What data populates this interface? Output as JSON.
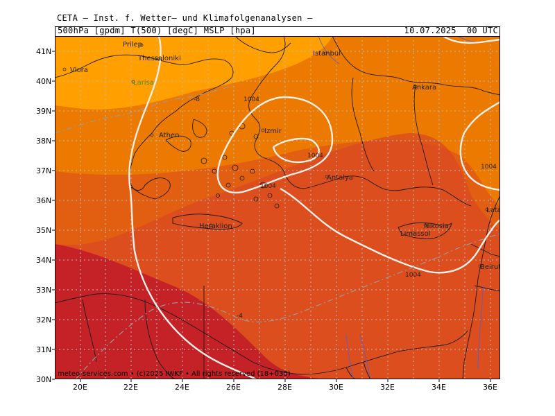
{
  "header": {
    "title": "CETA — Inst. f. Wetter— und Klimafolgenanalysen —",
    "variables": "500hPa [gpdm] T(500) [degC] MSLP [hpa]",
    "valid_time": "10.07.2025  00 UTC"
  },
  "map": {
    "lat_labels": [
      "41N",
      "40N",
      "39N",
      "38N",
      "37N",
      "36N",
      "35N",
      "34N",
      "33N",
      "32N",
      "31N",
      "30N"
    ],
    "lon_labels": [
      "20E",
      "22E",
      "24E",
      "26E",
      "28E",
      "30E",
      "32E",
      "34E",
      "36E"
    ],
    "cities": [
      {
        "name": "Prilep"
      },
      {
        "name": "Thessaloniki"
      },
      {
        "name": "Vlora"
      },
      {
        "name": "Larisa"
      },
      {
        "name": "Istanbul"
      },
      {
        "name": "Ankara"
      },
      {
        "name": "Izmir"
      },
      {
        "name": "Athen"
      },
      {
        "name": "Antalya"
      },
      {
        "name": "Heraklion"
      },
      {
        "name": "Nikosia"
      },
      {
        "name": "Limassol"
      },
      {
        "name": "Latakia"
      },
      {
        "name": "Beirut"
      }
    ],
    "isobar_labels": [
      "1004",
      "1004",
      "1004",
      "1004",
      "1004"
    ],
    "temp_labels": [
      "-8",
      "-4"
    ],
    "colors": {
      "band_cold": "#ff9f00",
      "band_mid": "#ec7a00",
      "band_orange": "#e25e10",
      "band_warm": "#da4a22",
      "band_hot": "#c42226",
      "isobar": "#f7f0ea",
      "grid": "#b9b9b9",
      "dashed_temp": "#9a9a9a",
      "border": "#1a1a1a",
      "river": "#4a62d8"
    },
    "credit": "meteo-services.com  •  (c)2025 IWKF  • All rights reserved  (18+030)"
  }
}
